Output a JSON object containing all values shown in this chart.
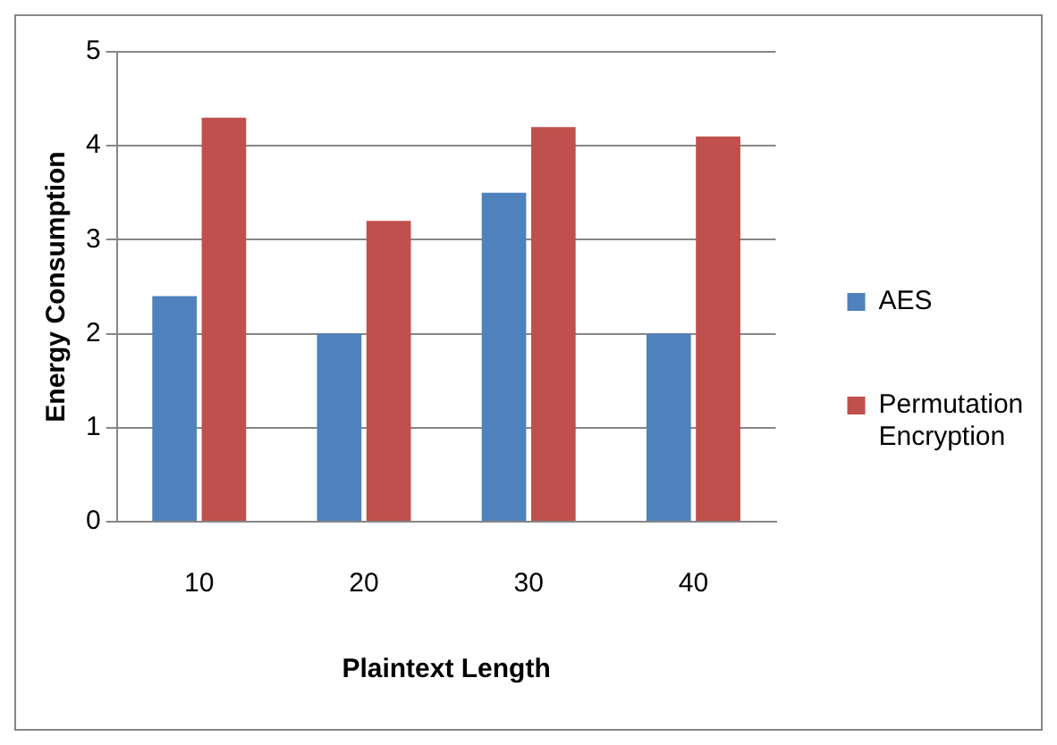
{
  "chart_data": {
    "type": "bar",
    "xlabel": "Plaintext Length",
    "ylabel": "Energy Consumption",
    "categories": [
      "10",
      "20",
      "30",
      "40"
    ],
    "series": [
      {
        "name": "AES",
        "color": "#4f81bd",
        "values": [
          2.4,
          2.0,
          3.5,
          2.0
        ]
      },
      {
        "name": "Permutation Encryption",
        "color": "#c0504d",
        "values": [
          4.3,
          3.2,
          4.2,
          4.1
        ]
      }
    ],
    "ylim": [
      0,
      5
    ],
    "yticks": [
      0,
      1,
      2,
      3,
      4,
      5
    ],
    "grid": "y",
    "legend": "right"
  }
}
